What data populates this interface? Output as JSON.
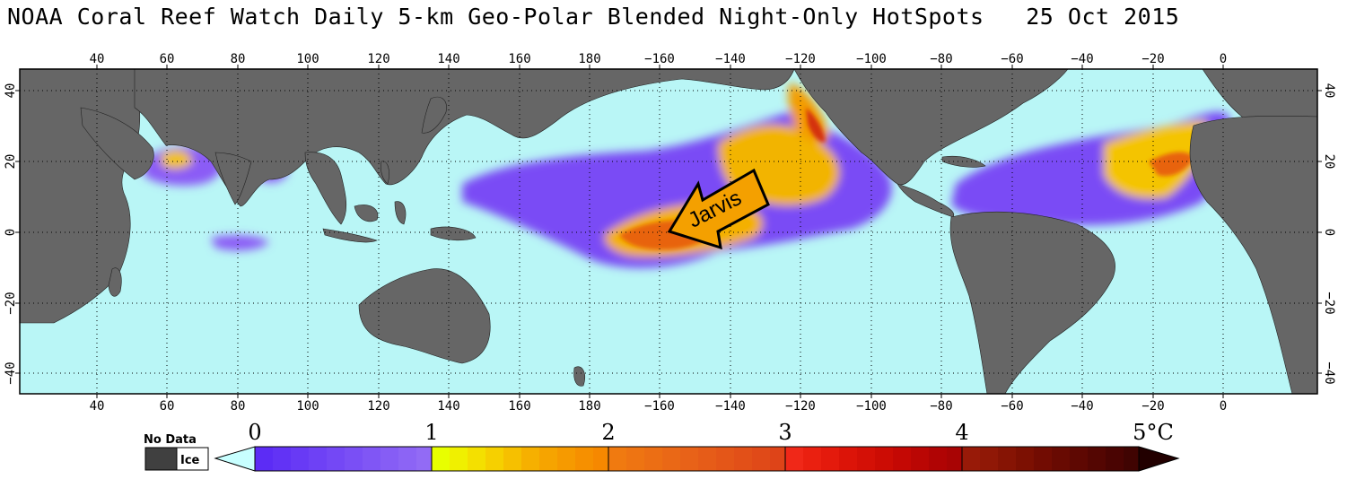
{
  "title": "NOAA Coral Reef Watch Daily 5-km Geo-Polar Blended Night-Only HotSpots   25 Oct 2015",
  "map": {
    "lon_ticks_top": [
      "40",
      "60",
      "80",
      "100",
      "120",
      "140",
      "160",
      "180",
      "−160",
      "−140",
      "−120",
      "−100",
      "−80",
      "−60",
      "−40",
      "−20",
      "0"
    ],
    "lon_ticks_bottom": [
      "40",
      "60",
      "80",
      "100",
      "120",
      "140",
      "160",
      "180",
      "−160",
      "−140",
      "−120",
      "−100",
      "−80",
      "−60",
      "−40",
      "−20",
      "0"
    ],
    "lat_ticks_left": [
      "40",
      "20",
      "0",
      "−20",
      "−40"
    ],
    "lat_ticks_right": [
      "40",
      "20",
      "0",
      "−20",
      "−40"
    ],
    "annotation": "Jarvis",
    "colors": {
      "ocean": "#b9f6f6",
      "land": "#666666",
      "border": "#000000"
    }
  },
  "legend": {
    "no_data_label": "No Data",
    "ice_label": "Ice",
    "scale_labels": [
      "0",
      "1",
      "2",
      "3",
      "4",
      "5°C"
    ],
    "colors": {
      "no_data": "#404040",
      "ice": "#ffffff",
      "below_zero": "#c8ffff",
      "above_max": "#220000"
    }
  }
}
